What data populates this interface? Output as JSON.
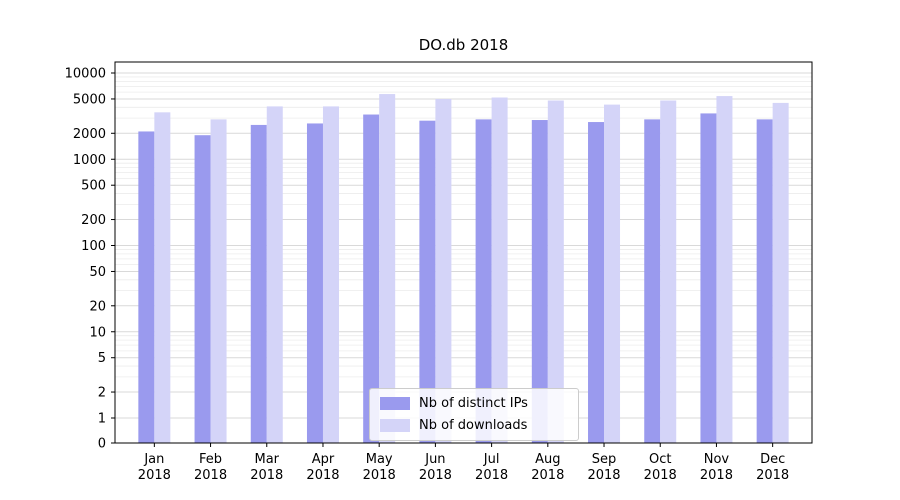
{
  "chart_data": {
    "type": "bar",
    "title": "DO.db 2018",
    "year_label": "2018",
    "categories": [
      "Jan",
      "Feb",
      "Mar",
      "Apr",
      "May",
      "Jun",
      "Jul",
      "Aug",
      "Sep",
      "Oct",
      "Nov",
      "Dec"
    ],
    "series": [
      {
        "name": "Nb of distinct IPs",
        "color": "#9a9aee",
        "values": [
          2100,
          1900,
          2500,
          2600,
          3300,
          2800,
          2900,
          2850,
          2700,
          2900,
          3400,
          2900
        ]
      },
      {
        "name": "Nb of downloads",
        "color": "#d4d4f8",
        "values": [
          3500,
          2900,
          4100,
          4100,
          5700,
          5000,
          5200,
          4800,
          4300,
          4800,
          5400,
          4500
        ]
      }
    ],
    "yscale": "symlog",
    "yticks": [
      0,
      1,
      2,
      5,
      10,
      20,
      50,
      100,
      200,
      500,
      1000,
      2000,
      5000,
      10000
    ],
    "ylim": [
      0,
      10000
    ],
    "xlabel": "",
    "ylabel": "",
    "grid": true,
    "legend_position": "bottom-center"
  }
}
